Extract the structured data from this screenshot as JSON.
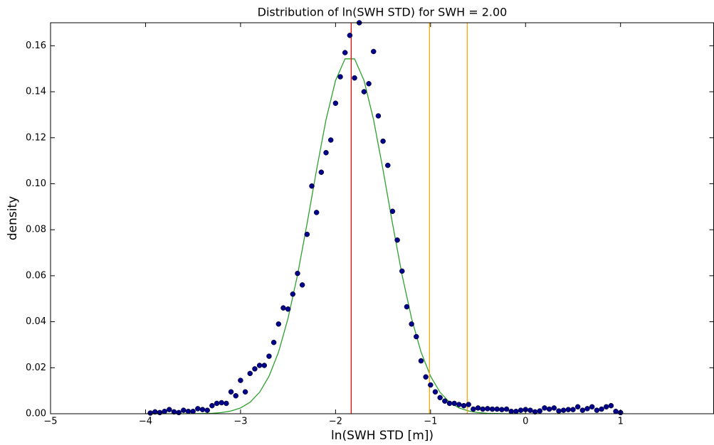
{
  "chart_data": {
    "type": "scatter",
    "title": "Distribution of ln(SWH STD) for SWH = 2.00",
    "x_label": "ln(SWH STD [m])",
    "y_label": "density",
    "xlim": [
      -5,
      1.98
    ],
    "ylim": [
      0,
      0.17
    ],
    "xticks": [
      {
        "value": -5,
        "label": "−5"
      },
      {
        "value": -4,
        "label": "−4"
      },
      {
        "value": -3,
        "label": "−3"
      },
      {
        "value": -2,
        "label": "−2"
      },
      {
        "value": -1,
        "label": "−1"
      },
      0,
      1
    ],
    "yticks": [
      {
        "value": 0,
        "label": "0.00"
      },
      {
        "value": 0.02,
        "label": "0.02"
      },
      {
        "value": 0.04,
        "label": "0.04"
      },
      {
        "value": 0.06,
        "label": "0.06"
      },
      {
        "value": 0.08,
        "label": "0.08"
      },
      {
        "value": 0.1,
        "label": "0.10"
      },
      {
        "value": 0.12,
        "label": "0.12"
      },
      {
        "value": 0.14,
        "label": "0.14"
      },
      {
        "value": 0.16,
        "label": "0.16"
      }
    ],
    "color": "#00008b",
    "x": [
      -3.95,
      -3.9,
      -3.85,
      -3.8,
      -3.75,
      -3.7,
      -3.65,
      -3.6,
      -3.55,
      -3.5,
      -3.45,
      -3.4,
      -3.35,
      -3.3,
      -3.25,
      -3.2,
      -3.15,
      -3.1,
      -3.05,
      -3.0,
      -2.95,
      -2.9,
      -2.85,
      -2.8,
      -2.75,
      -2.7,
      -2.65,
      -2.6,
      -2.55,
      -2.5,
      -2.45,
      -2.4,
      -2.35,
      -2.3,
      -2.25,
      -2.2,
      -2.15,
      -2.1,
      -2.05,
      -2.0,
      -1.95,
      -1.9,
      -1.85,
      -1.8,
      -1.75,
      -1.7,
      -1.65,
      -1.6,
      -1.55,
      -1.5,
      -1.45,
      -1.4,
      -1.35,
      -1.3,
      -1.25,
      -1.2,
      -1.15,
      -1.1,
      -1.05,
      -1.0,
      -0.95,
      -0.9,
      -0.85,
      -0.8,
      -0.75,
      -0.7,
      -0.65,
      -0.6,
      -0.55,
      -0.5,
      -0.45,
      -0.4,
      -0.35,
      -0.3,
      -0.25,
      -0.2,
      -0.15,
      -0.1,
      -0.05,
      0.0,
      0.05,
      0.1,
      0.15,
      0.2,
      0.25,
      0.3,
      0.35,
      0.4,
      0.45,
      0.5,
      0.55,
      0.6,
      0.65,
      0.7,
      0.75,
      0.8,
      0.85,
      0.9,
      0.95,
      1.0
    ],
    "values": [
      0.0003,
      0.0008,
      0.0005,
      0.001,
      0.0018,
      0.0008,
      0.0005,
      0.0015,
      0.001,
      0.001,
      0.0022,
      0.0018,
      0.0015,
      0.0035,
      0.0045,
      0.0048,
      0.0045,
      0.0095,
      0.0078,
      0.0145,
      0.0095,
      0.0175,
      0.0195,
      0.021,
      0.021,
      0.025,
      0.031,
      0.039,
      0.046,
      0.0455,
      0.052,
      0.061,
      0.056,
      0.078,
      0.099,
      0.0875,
      0.105,
      0.1135,
      0.119,
      0.135,
      0.1465,
      0.157,
      0.1645,
      0.146,
      0.17,
      0.14,
      0.1435,
      0.1575,
      0.1295,
      0.1185,
      0.108,
      0.088,
      0.0755,
      0.062,
      0.0465,
      0.039,
      0.0335,
      0.023,
      0.016,
      0.0125,
      0.0095,
      0.007,
      0.0055,
      0.0045,
      0.0045,
      0.004,
      0.0035,
      0.004,
      0.002,
      0.0025,
      0.002,
      0.0022,
      0.002,
      0.002,
      0.0018,
      0.002,
      0.001,
      0.001,
      0.0015,
      0.0018,
      0.0015,
      0.0008,
      0.0012,
      0.0025,
      0.002,
      0.0025,
      0.0012,
      0.0015,
      0.0018,
      0.0018,
      0.003,
      0.0015,
      0.0022,
      0.003,
      0.0015,
      0.002,
      0.003,
      0.0035,
      0.001,
      0.0005
    ],
    "curve": {
      "color": "#2ca02c",
      "x": [
        -4.0,
        -3.9,
        -3.8,
        -3.7,
        -3.6,
        -3.5,
        -3.4,
        -3.3,
        -3.2,
        -3.1,
        -3.0,
        -2.9,
        -2.8,
        -2.7,
        -2.6,
        -2.5,
        -2.4,
        -2.3,
        -2.2,
        -2.1,
        -2.0,
        -1.9,
        -1.8,
        -1.7,
        -1.6,
        -1.5,
        -1.4,
        -1.3,
        -1.2,
        -1.1,
        -1.0,
        -0.9,
        -0.8,
        -0.7,
        -0.6,
        -0.5,
        -0.4,
        -0.3,
        -0.2,
        -0.1,
        0.0
      ],
      "values": [
        0,
        0,
        0,
        0,
        1e-05,
        3e-05,
        9e-05,
        0.0002,
        0.0005,
        0.0012,
        0.0025,
        0.005,
        0.0093,
        0.0163,
        0.0268,
        0.0415,
        0.0604,
        0.0826,
        0.106,
        0.1279,
        0.1449,
        0.1543,
        0.1543,
        0.1449,
        0.1279,
        0.106,
        0.0826,
        0.0604,
        0.0415,
        0.0268,
        0.0163,
        0.0093,
        0.005,
        0.0025,
        0.0012,
        0.0005,
        0.0002,
        0.0001,
        0,
        0,
        0
      ]
    },
    "vlines": [
      {
        "x": -1.835,
        "color": "#ff0000"
      },
      {
        "x": -1.011,
        "color": "#ffa500"
      },
      {
        "x": -0.614,
        "color": "#ffa500"
      }
    ]
  }
}
